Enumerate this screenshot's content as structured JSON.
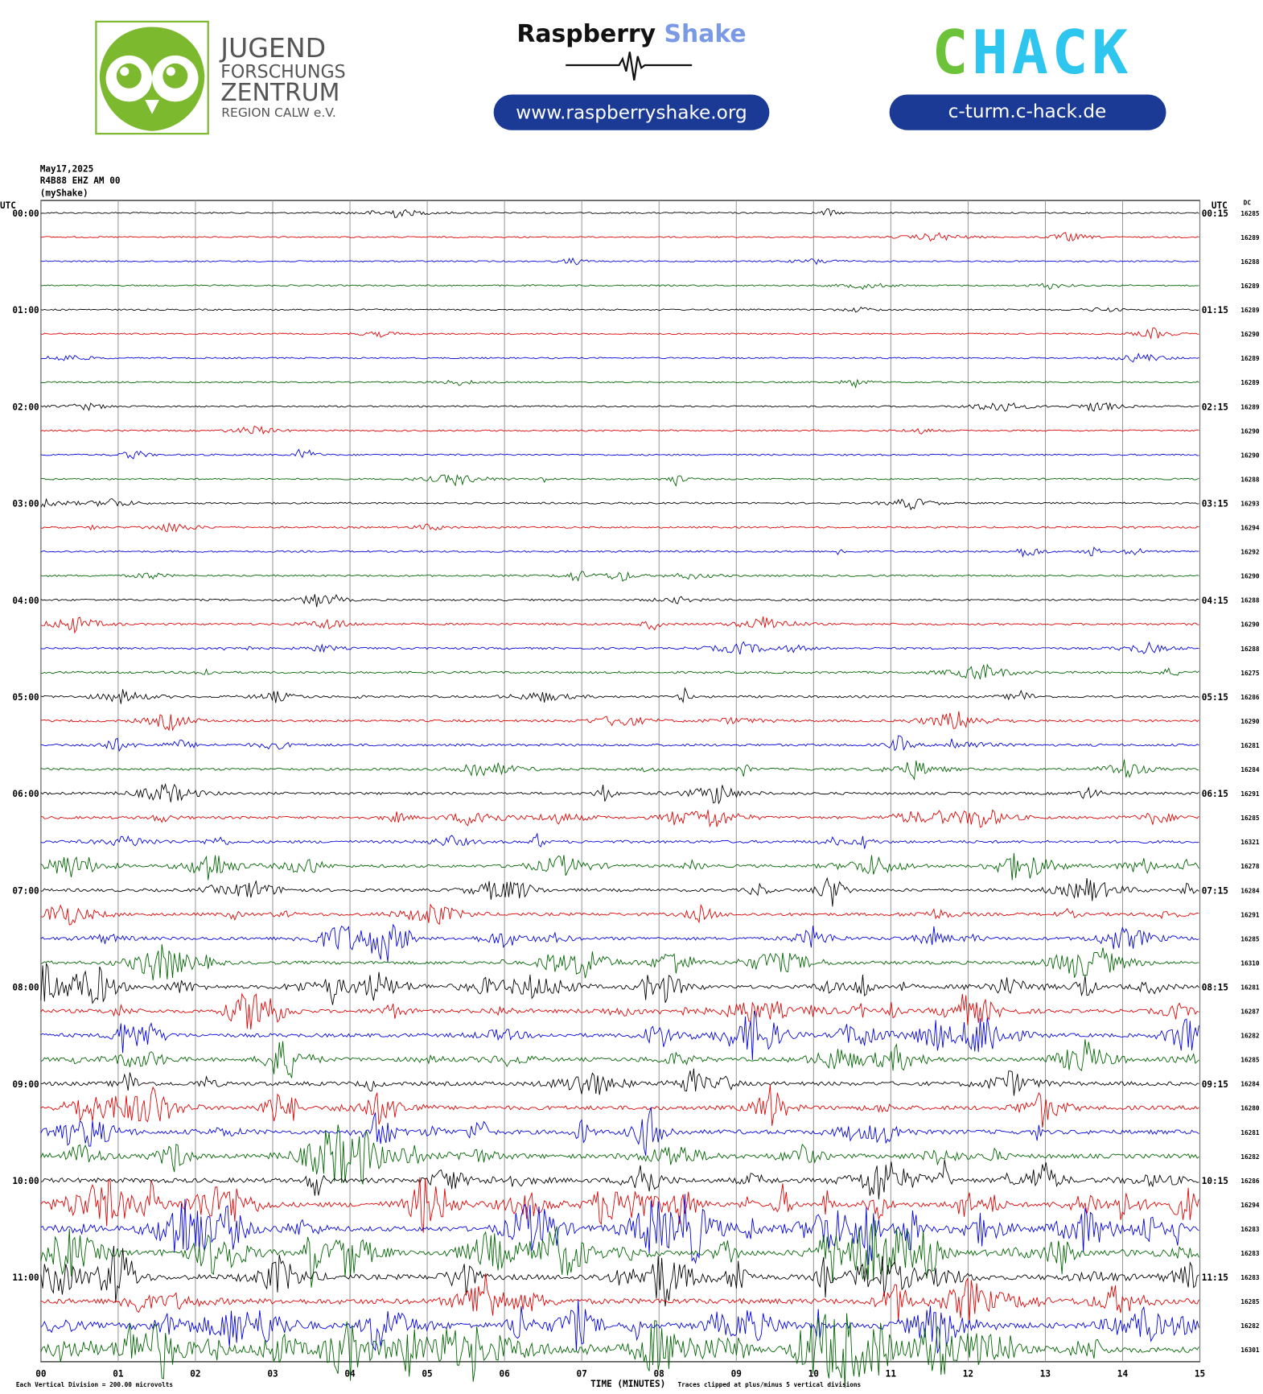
{
  "header": {
    "logo_left": {
      "line1": "JUGEND",
      "line2": "FORSCHUNGS",
      "line3": "ZENTRUM",
      "line4": "REGION CALW e.V."
    },
    "logo_center": {
      "word1": "Raspberry",
      "word2": "Shake",
      "link": "www.raspberryshake.org"
    },
    "logo_right": {
      "part1": "C",
      "part2": "HACK",
      "link": "c-turm.c-hack.de"
    }
  },
  "plot": {
    "date": "May17,2025",
    "station": "R4B88 EHZ AM 00",
    "source": "(myShake)",
    "left_axis_title": "UTC",
    "right_axis_title": "UTC",
    "dc_title": "DC",
    "left_times": [
      "00:00",
      "01:00",
      "02:00",
      "03:00",
      "04:00",
      "05:00",
      "06:00",
      "07:00",
      "08:00",
      "09:00",
      "10:00",
      "11:00"
    ],
    "right_times": [
      "00:15",
      "01:15",
      "02:15",
      "03:15",
      "04:15",
      "05:15",
      "06:15",
      "07:15",
      "08:15",
      "09:15",
      "10:15",
      "11:15"
    ],
    "dc_values": [
      16285,
      16289,
      16288,
      16289,
      16289,
      16290,
      16289,
      16289,
      16289,
      16290,
      16290,
      16288,
      16293,
      16294,
      16292,
      16290,
      16288,
      16290,
      16288,
      16275,
      16286,
      16290,
      16281,
      16284,
      16291,
      16285,
      16321,
      16278,
      16284,
      16291,
      16285,
      16310,
      16281,
      16287,
      16282,
      16285,
      16284,
      16280,
      16281,
      16282,
      16286,
      16294,
      16283,
      16283,
      16283,
      16285,
      16282,
      16301
    ],
    "trace_colors": [
      "#000000",
      "#e00000",
      "#0000e0",
      "#006400"
    ],
    "minute_labels": [
      "00",
      "01",
      "02",
      "03",
      "04",
      "05",
      "06",
      "07",
      "08",
      "09",
      "10",
      "11",
      "12",
      "13",
      "14",
      "15"
    ],
    "x_axis_title": "TIME (MINUTES)",
    "scale_note": "Each Vertical Division =  200.00 microvolts",
    "clip_note": "Traces clipped at plus/minus 5 vertical divisions"
  }
}
